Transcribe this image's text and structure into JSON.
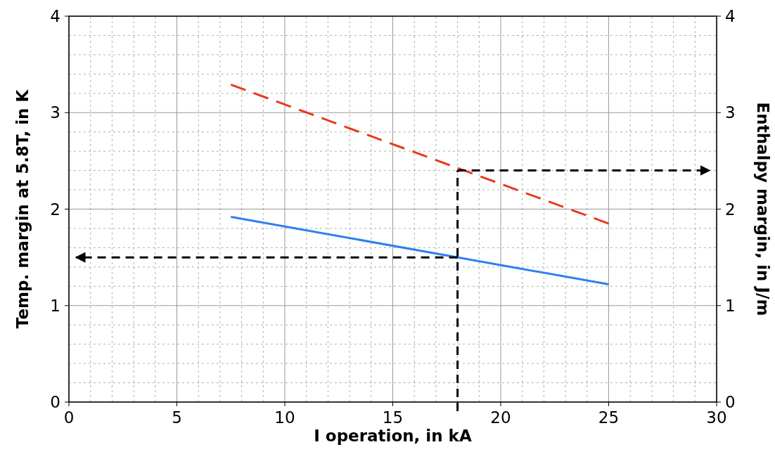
{
  "chart_data": {
    "type": "line",
    "xlabel": "I operation, in kA",
    "ylabel": "Temp. margin at 5.8T, in K",
    "y2label": "Enthalpy margin, in J/m",
    "series": [
      {
        "color": "#2e7ff0",
        "values": [
          1.92,
          1.22
        ],
        "line_style": "solid"
      },
      {
        "color": "#e8391a",
        "values": [
          3.29,
          1.85
        ],
        "line_style": "dashed"
      }
    ],
    "x": [
      7.5,
      25
    ],
    "xlim": [
      0,
      30
    ],
    "xticks": [
      0,
      5,
      10,
      15,
      20,
      25,
      30
    ],
    "ylim": [
      0,
      4
    ],
    "yticks": [
      0,
      1,
      2,
      3,
      4
    ],
    "y2lim": [
      0,
      4
    ],
    "y2ticks": [
      0,
      1,
      2,
      3,
      4
    ],
    "grid": true,
    "marker": "none",
    "ref_lines": [
      {
        "axis": "x",
        "value": 18,
        "color": "#000000",
        "line_style": "dashed"
      },
      {
        "axis": "y",
        "value": 1.5,
        "color": "#000000",
        "line_style": "dashed"
      },
      {
        "axis": "y2",
        "value": 2.4,
        "color": "#000000",
        "line_style": "dashed"
      }
    ]
  }
}
